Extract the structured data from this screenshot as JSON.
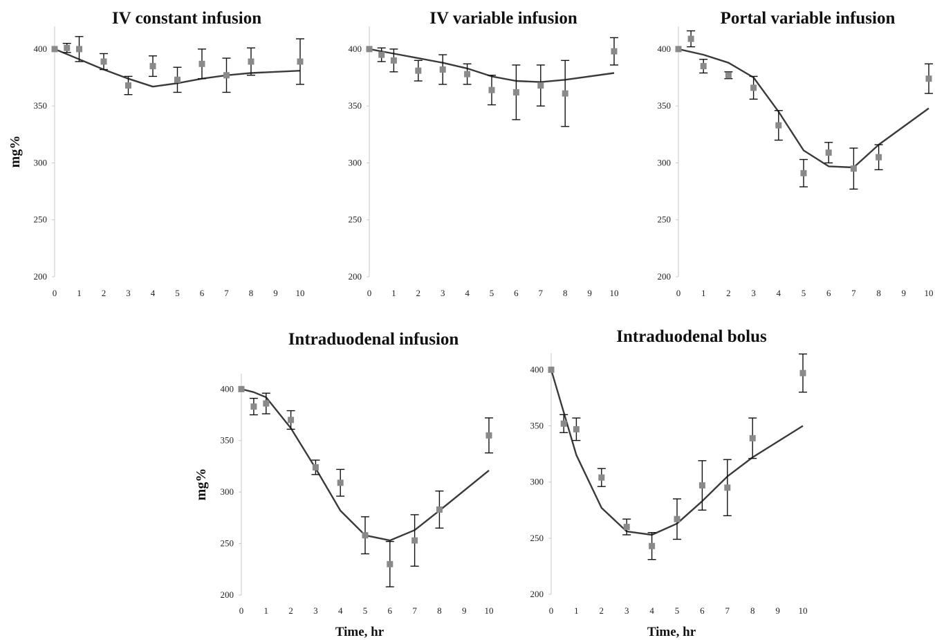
{
  "chart_data": [
    {
      "type": "scatter",
      "title": "IV constant infusion",
      "ylabel": "mg%",
      "xlabel": "",
      "ylim": [
        200,
        420
      ],
      "yticks": [
        200,
        250,
        300,
        350,
        400
      ],
      "xticks": [
        0,
        1,
        2,
        3,
        4,
        5,
        6,
        7,
        8,
        9,
        10
      ],
      "xlim": [
        0,
        10
      ],
      "series": [
        {
          "kind": "points_with_error",
          "x": [
            0,
            0.5,
            1,
            2,
            3,
            4,
            5,
            6,
            7,
            8,
            10
          ],
          "y": [
            400,
            401,
            400,
            389,
            368,
            385,
            373,
            387,
            377,
            389,
            389
          ],
          "err": [
            0,
            4,
            11,
            7,
            8,
            9,
            11,
            13,
            15,
            12,
            20
          ]
        },
        {
          "kind": "model_line",
          "x": [
            0,
            1,
            2,
            3,
            4,
            5,
            6,
            7,
            8,
            10
          ],
          "y": [
            400,
            391,
            382,
            374,
            367,
            370,
            374,
            377,
            379,
            381
          ]
        }
      ]
    },
    {
      "type": "scatter",
      "title": "IV variable infusion",
      "ylabel": "",
      "xlabel": "",
      "ylim": [
        200,
        420
      ],
      "yticks": [
        200,
        250,
        300,
        350,
        400
      ],
      "xticks": [
        0,
        1,
        2,
        3,
        4,
        5,
        6,
        7,
        8,
        9,
        10
      ],
      "xlim": [
        0,
        10
      ],
      "series": [
        {
          "kind": "points_with_error",
          "x": [
            0,
            0.5,
            1,
            2,
            3,
            4,
            5,
            6,
            7,
            8,
            10
          ],
          "y": [
            400,
            395,
            390,
            381,
            382,
            378,
            364,
            362,
            368,
            361,
            398
          ],
          "err": [
            0,
            6,
            10,
            9,
            13,
            9,
            13,
            24,
            18,
            29,
            12
          ]
        },
        {
          "kind": "model_line",
          "x": [
            0,
            1,
            2,
            3,
            4,
            5,
            6,
            7,
            8,
            10
          ],
          "y": [
            400,
            396,
            392,
            388,
            383,
            376,
            372,
            371,
            373,
            379
          ]
        }
      ]
    },
    {
      "type": "scatter",
      "title": "Portal variable infusion",
      "ylabel": "",
      "xlabel": "",
      "ylim": [
        200,
        420
      ],
      "yticks": [
        200,
        250,
        300,
        350,
        400
      ],
      "xticks": [
        0,
        1,
        2,
        3,
        4,
        5,
        6,
        7,
        8,
        9,
        10
      ],
      "xlim": [
        0,
        10
      ],
      "series": [
        {
          "kind": "points_with_error",
          "x": [
            0,
            0.5,
            1,
            2,
            3,
            4,
            5,
            6,
            7,
            8,
            10
          ],
          "y": [
            400,
            409,
            385,
            377,
            366,
            333,
            291,
            309,
            295,
            305,
            374
          ],
          "err": [
            0,
            7,
            6,
            3,
            10,
            13,
            12,
            9,
            18,
            11,
            13
          ]
        },
        {
          "kind": "model_line",
          "x": [
            0,
            1,
            2,
            3,
            4,
            5,
            6,
            7,
            8,
            10
          ],
          "y": [
            400,
            395,
            388,
            375,
            345,
            311,
            297,
            296,
            316,
            348
          ]
        }
      ]
    },
    {
      "type": "scatter",
      "title": "Intraduodenal infusion",
      "ylabel": "mg%",
      "xlabel": "Time, hr",
      "ylim": [
        200,
        415
      ],
      "yticks": [
        200,
        250,
        300,
        350,
        400
      ],
      "xticks": [
        0,
        1,
        2,
        3,
        4,
        5,
        6,
        7,
        8,
        9,
        10
      ],
      "xlim": [
        0,
        10
      ],
      "series": [
        {
          "kind": "points_with_error",
          "x": [
            0,
            0.5,
            1,
            2,
            3,
            4,
            5,
            6,
            7,
            8,
            10
          ],
          "y": [
            400,
            383,
            386,
            370,
            324,
            309,
            258,
            230,
            253,
            283,
            355
          ],
          "err": [
            0,
            8,
            10,
            9,
            7,
            13,
            18,
            22,
            25,
            18,
            17
          ]
        },
        {
          "kind": "model_line",
          "x": [
            0,
            0.5,
            1,
            2,
            3,
            4,
            5,
            6,
            7,
            8,
            10
          ],
          "y": [
            400,
            397,
            392,
            362,
            323,
            282,
            258,
            253,
            263,
            282,
            321
          ]
        }
      ]
    },
    {
      "type": "scatter",
      "title": "Intraduodenal bolus",
      "ylabel": "",
      "xlabel": "Time, hr",
      "ylim": [
        200,
        415
      ],
      "yticks": [
        200,
        250,
        300,
        350,
        400
      ],
      "xticks": [
        0,
        1,
        2,
        3,
        4,
        5,
        6,
        7,
        8,
        9,
        10
      ],
      "xlim": [
        0,
        10
      ],
      "series": [
        {
          "kind": "points_with_error",
          "x": [
            0,
            0.5,
            1,
            2,
            3,
            4,
            5,
            6,
            7,
            8,
            10
          ],
          "y": [
            400,
            352,
            347,
            304,
            260,
            243,
            267,
            297,
            295,
            339,
            397
          ],
          "err": [
            0,
            8,
            10,
            8,
            7,
            12,
            18,
            22,
            25,
            18,
            17
          ]
        },
        {
          "kind": "model_line",
          "x": [
            0,
            1,
            2,
            3,
            4,
            5,
            6,
            7,
            8,
            10
          ],
          "y": [
            400,
            324,
            277,
            256,
            253,
            263,
            283,
            305,
            322,
            350
          ]
        }
      ]
    }
  ]
}
